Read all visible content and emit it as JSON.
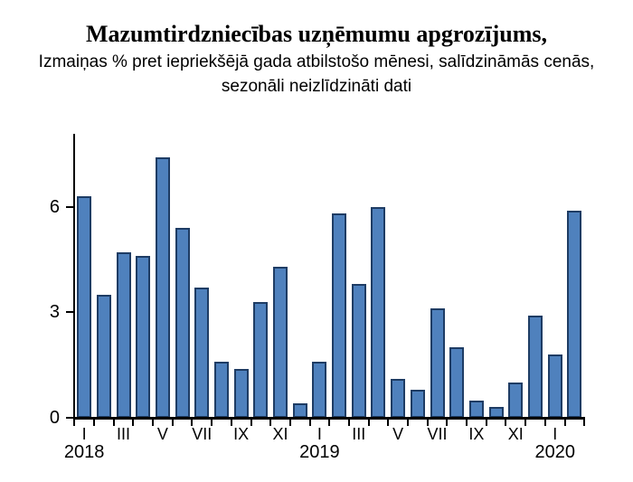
{
  "title": "Mazumtirdzniecības uzņēmumu apgrozījums,",
  "subtitle_line1": "Izmaiņas % pret iepriekšējā gada atbilstošo mēnesi, salīdzināmās cenās,",
  "subtitle_line2": "sezonāli neizlīdzināti dati",
  "chart_data": {
    "type": "bar",
    "title": "Mazumtirdzniecības uzņēmumu apgrozījums,",
    "subtitle": "Izmaiņas % pret iepriekšējā gada atbilstošo mēnesi, salīdzināmās cenās, sezonāli neizlīdzināti dati",
    "categories": [
      "2018-I",
      "2018-II",
      "2018-III",
      "2018-IV",
      "2018-V",
      "2018-VI",
      "2018-VII",
      "2018-VIII",
      "2018-IX",
      "2018-X",
      "2018-XI",
      "2018-XII",
      "2019-I",
      "2019-II",
      "2019-III",
      "2019-IV",
      "2019-V",
      "2019-VI",
      "2019-VII",
      "2019-VIII",
      "2019-IX",
      "2019-X",
      "2019-XI",
      "2019-XII",
      "2020-I",
      "2020-II"
    ],
    "values": [
      6.3,
      3.5,
      4.7,
      4.6,
      7.4,
      5.4,
      3.7,
      1.6,
      1.4,
      3.3,
      4.3,
      0.4,
      1.6,
      5.8,
      3.8,
      6.0,
      1.1,
      0.8,
      3.1,
      2.0,
      0.5,
      0.3,
      1.0,
      2.9,
      1.8,
      5.9
    ],
    "xtick_labels": [
      "I",
      "III",
      "V",
      "VII",
      "IX",
      "XI",
      "I",
      "III",
      "V",
      "VII",
      "IX",
      "XI",
      "I"
    ],
    "year_labels": [
      "2018",
      "2019",
      "2020"
    ],
    "ylabel": "",
    "xlabel": "",
    "yticks": [
      "0",
      "3",
      "6"
    ],
    "ytick_values": [
      0,
      3,
      6
    ],
    "ylim": [
      0,
      8.1
    ],
    "grid": false,
    "legend": false,
    "bar_fill": "#4f81bd",
    "bar_border": "#1e3c64",
    "axis_color": "#000000"
  }
}
